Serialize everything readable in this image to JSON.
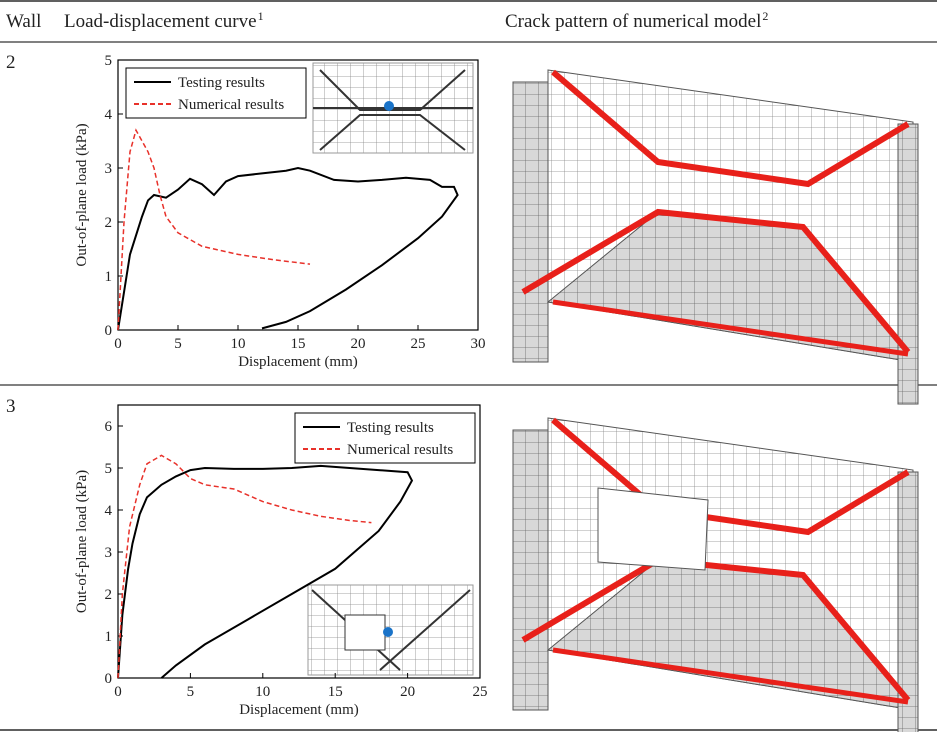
{
  "table": {
    "header": {
      "wall": "Wall",
      "curve": "Load-displacement curve",
      "curve_note": "1",
      "crack": "Crack pattern of numerical model",
      "crack_note": "2"
    },
    "rows": [
      {
        "wall": "2"
      },
      {
        "wall": "3"
      }
    ]
  },
  "chart_data": [
    {
      "type": "line",
      "x_label": "Displacement (mm)",
      "y_label": "Out-of-plane load (kPa)",
      "xlim": [
        0,
        30
      ],
      "xticks": [
        0,
        5,
        10,
        15,
        20,
        25,
        30
      ],
      "ylim": [
        0,
        5
      ],
      "yticks": [
        0,
        1,
        2,
        3,
        4,
        5
      ],
      "legend": "upper-left",
      "series": [
        {
          "name": "Testing results",
          "color": "#000000",
          "dash": false,
          "x": [
            0,
            1,
            2,
            2.5,
            3,
            4,
            5,
            6,
            7,
            8,
            9,
            10,
            12,
            14,
            15,
            16,
            18,
            20,
            22,
            24,
            26,
            27,
            28,
            28.3,
            27,
            25,
            22,
            19,
            16,
            14,
            12
          ],
          "values": [
            0,
            1.4,
            2.1,
            2.4,
            2.5,
            2.45,
            2.6,
            2.8,
            2.7,
            2.5,
            2.75,
            2.85,
            2.9,
            2.95,
            3.0,
            2.95,
            2.78,
            2.75,
            2.78,
            2.82,
            2.78,
            2.65,
            2.65,
            2.5,
            2.1,
            1.7,
            1.2,
            0.75,
            0.35,
            0.15,
            0.03
          ]
        },
        {
          "name": "Numerical results",
          "color": "#e8312a",
          "dash": true,
          "x": [
            0,
            0.5,
            1,
            1.5,
            2,
            2.5,
            3,
            3.5,
            4,
            5,
            7,
            10,
            13,
            16
          ],
          "values": [
            0,
            2,
            3.3,
            3.7,
            3.5,
            3.3,
            3.0,
            2.5,
            2.1,
            1.8,
            1.55,
            1.4,
            1.3,
            1.22
          ]
        }
      ]
    },
    {
      "type": "line",
      "x_label": "Displacement (mm)",
      "y_label": "Out-of-plane load (kPa)",
      "xlim": [
        0,
        25
      ],
      "xticks": [
        0,
        5,
        10,
        15,
        20,
        25
      ],
      "ylim": [
        0,
        6.5
      ],
      "yticks": [
        0,
        1,
        2,
        3,
        4,
        5,
        6
      ],
      "legend": "upper-right",
      "series": [
        {
          "name": "Testing results",
          "color": "#000000",
          "dash": false,
          "x": [
            0,
            0.3,
            0.7,
            1,
            1.5,
            2,
            3,
            4,
            5,
            6,
            8,
            10,
            12,
            14,
            16,
            18,
            20,
            20.3,
            19.5,
            18,
            15,
            12,
            9,
            6,
            4,
            3
          ],
          "values": [
            0,
            1.5,
            2.6,
            3.2,
            3.9,
            4.3,
            4.6,
            4.8,
            4.95,
            5.0,
            4.98,
            4.98,
            5.0,
            5.05,
            5.0,
            4.95,
            4.9,
            4.7,
            4.2,
            3.5,
            2.6,
            2.0,
            1.4,
            0.8,
            0.3,
            0
          ]
        },
        {
          "name": "Numerical results",
          "color": "#e8312a",
          "dash": true,
          "x": [
            0,
            0.3,
            0.8,
            1.5,
            2,
            3,
            4,
            5,
            6,
            8,
            10,
            12,
            14,
            16,
            17.5
          ],
          "values": [
            0,
            2,
            3.6,
            4.6,
            5.1,
            5.3,
            5.1,
            4.75,
            4.6,
            4.5,
            4.2,
            4.0,
            3.85,
            3.75,
            3.7
          ]
        }
      ]
    }
  ]
}
